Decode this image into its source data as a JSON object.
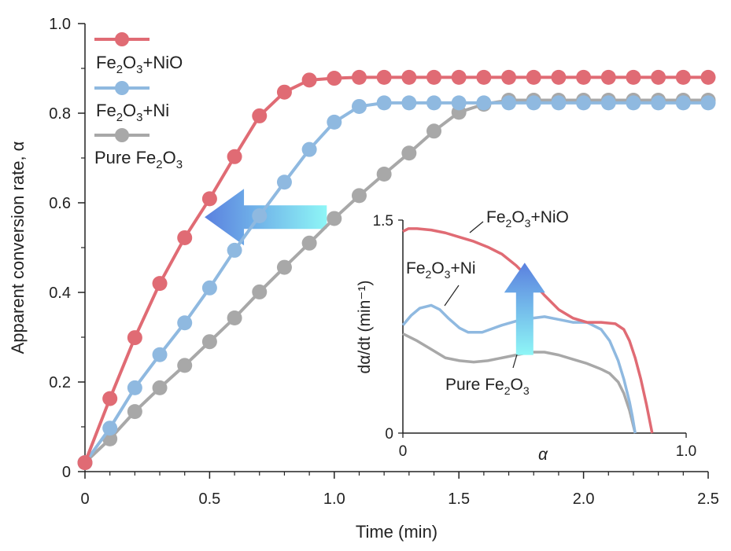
{
  "chart_data": [
    {
      "type": "line",
      "xlabel": "Time (min)",
      "ylabel": "Apparent conversion rate, α",
      "xlim": [
        0,
        2.5
      ],
      "ylim": [
        0,
        1.0
      ],
      "xticks": [
        "0",
        "0.5",
        "1.0",
        "1.5",
        "2.0",
        "2.5"
      ],
      "yticks": [
        "0",
        "0.2",
        "0.4",
        "0.6",
        "0.8",
        "1.0"
      ],
      "legend_position": "top-left",
      "grid": false,
      "x": [
        0,
        0.1,
        0.2,
        0.3,
        0.4,
        0.5,
        0.6,
        0.7,
        0.8,
        0.9,
        1.0,
        1.1,
        1.2,
        1.3,
        1.4,
        1.5,
        1.6,
        1.7,
        1.8,
        1.9,
        2.0,
        2.1,
        2.2,
        2.3,
        2.4,
        2.5
      ],
      "series": [
        {
          "name": "Fe2O3+NiO",
          "color": "#e06b74",
          "values": [
            0.02,
            0.163,
            0.299,
            0.42,
            0.522,
            0.609,
            0.703,
            0.794,
            0.847,
            0.874,
            0.878,
            0.88,
            0.88,
            0.88,
            0.88,
            0.88,
            0.88,
            0.88,
            0.88,
            0.88,
            0.88,
            0.88,
            0.88,
            0.88,
            0.88,
            0.88
          ]
        },
        {
          "name": "Fe2O3+Ni",
          "color": "#8fb9e0",
          "values": [
            0.02,
            0.097,
            0.187,
            0.261,
            0.332,
            0.41,
            0.494,
            0.571,
            0.646,
            0.719,
            0.78,
            0.815,
            0.823,
            0.823,
            0.823,
            0.823,
            0.823,
            0.823,
            0.823,
            0.823,
            0.823,
            0.823,
            0.823,
            0.823,
            0.823,
            0.823
          ]
        },
        {
          "name": "Pure Fe2O3",
          "color": "#a8a8a8",
          "values": [
            0.02,
            0.073,
            0.134,
            0.187,
            0.237,
            0.29,
            0.343,
            0.401,
            0.456,
            0.51,
            0.565,
            0.616,
            0.664,
            0.711,
            0.76,
            0.802,
            0.82,
            0.829,
            0.829,
            0.829,
            0.829,
            0.829,
            0.829,
            0.829,
            0.829,
            0.829
          ]
        }
      ],
      "annotations": [
        {
          "type": "arrow",
          "direction": "left",
          "from": [
            0.97,
            0.568
          ],
          "to": [
            0.48,
            0.568
          ],
          "color_start": "#8ef6f6",
          "color_end": "#5a80df"
        }
      ]
    },
    {
      "type": "line",
      "inset": true,
      "xlabel": "α",
      "ylabel": "dα/dt (min⁻¹)",
      "xlim": [
        0,
        1.0
      ],
      "ylim": [
        0,
        1.5
      ],
      "xticks": [
        "0",
        "1.0"
      ],
      "yticks": [
        "0",
        "1.5"
      ],
      "series": [
        {
          "name": "Fe2O3+NiO",
          "color": "#e06b74",
          "x": [
            0,
            0.02,
            0.05,
            0.1,
            0.15,
            0.2,
            0.25,
            0.3,
            0.35,
            0.4,
            0.45,
            0.5,
            0.55,
            0.6,
            0.65,
            0.7,
            0.75,
            0.78,
            0.8,
            0.82,
            0.84,
            0.86,
            0.87,
            0.88
          ],
          "values": [
            1.42,
            1.44,
            1.44,
            1.43,
            1.41,
            1.38,
            1.35,
            1.31,
            1.26,
            1.18,
            1.08,
            0.97,
            0.87,
            0.81,
            0.78,
            0.78,
            0.77,
            0.73,
            0.65,
            0.53,
            0.38,
            0.2,
            0.1,
            0
          ]
        },
        {
          "name": "Fe2O3+Ni",
          "color": "#8fb9e0",
          "x": [
            0,
            0.03,
            0.06,
            0.1,
            0.13,
            0.16,
            0.2,
            0.23,
            0.28,
            0.35,
            0.42,
            0.5,
            0.55,
            0.6,
            0.65,
            0.7,
            0.73,
            0.76,
            0.78,
            0.8,
            0.81,
            0.82
          ],
          "values": [
            0.76,
            0.83,
            0.88,
            0.9,
            0.87,
            0.81,
            0.74,
            0.71,
            0.71,
            0.76,
            0.8,
            0.82,
            0.8,
            0.78,
            0.78,
            0.73,
            0.65,
            0.51,
            0.38,
            0.22,
            0.12,
            0
          ]
        },
        {
          "name": "Pure Fe2O3",
          "color": "#a8a8a8",
          "x": [
            0,
            0.05,
            0.1,
            0.15,
            0.2,
            0.25,
            0.3,
            0.35,
            0.4,
            0.45,
            0.5,
            0.55,
            0.6,
            0.65,
            0.7,
            0.73,
            0.76,
            0.78,
            0.8,
            0.81,
            0.82
          ],
          "values": [
            0.7,
            0.65,
            0.59,
            0.53,
            0.51,
            0.5,
            0.51,
            0.53,
            0.55,
            0.57,
            0.57,
            0.55,
            0.52,
            0.49,
            0.45,
            0.42,
            0.36,
            0.28,
            0.16,
            0.08,
            0
          ]
        }
      ],
      "series_labels": {
        "nio": {
          "base": "Fe",
          "sub1": "2",
          "mid": "O",
          "sub2": "3",
          "tail": "+NiO"
        },
        "ni": {
          "base": "Fe",
          "sub1": "2",
          "mid": "O",
          "sub2": "3",
          "tail": "+Ni"
        },
        "pure": {
          "base": "Pure Fe",
          "sub1": "2",
          "mid": "O",
          "sub2": "3",
          "tail": ""
        }
      },
      "annotations": [
        {
          "type": "arrow",
          "direction": "up",
          "from": [
            0.43,
            0.55
          ],
          "to": [
            0.43,
            1.2
          ],
          "color_start": "#8ef6f6",
          "color_end": "#5a80df"
        }
      ]
    }
  ],
  "legend": {
    "nio": {
      "base": "Fe",
      "sub1": "2",
      "mid": "O",
      "sub2": "3",
      "tail": "+NiO"
    },
    "ni": {
      "base": "Fe",
      "sub1": "2",
      "mid": "O",
      "sub2": "3",
      "tail": "+Ni"
    },
    "pure": {
      "base": "Pure Fe",
      "sub1": "2",
      "mid": "O",
      "sub2": "3",
      "tail": ""
    }
  }
}
